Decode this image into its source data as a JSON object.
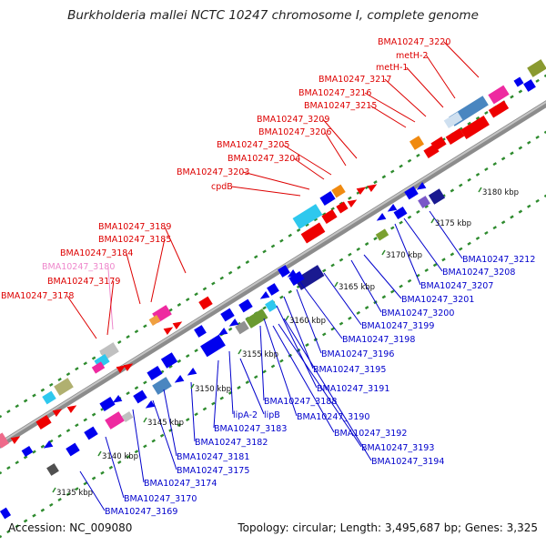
{
  "title": "Burkholderia mallei NCTC 10247 chromosome I, complete genome",
  "accession_label": "Accession: NC_009080",
  "topology_label": "Topology: circular; Length: 3,495,687 bp; Genes: 3,325",
  "colors": {
    "backbone": "#8c8c8c",
    "tick_dots": "#2e8b2e",
    "label_red": "#dd0000",
    "label_pink": "#ee88cc",
    "label_blue": "#0000cc"
  },
  "scale_labels": [
    "3135 kbp",
    "3140 kbp",
    "3145 kbp",
    "3150 kbp",
    "3155 kbp",
    "3160 kbp",
    "3165 kbp",
    "3170 kbp",
    "3175 kbp",
    "3180 kbp"
  ],
  "upper_labels": [
    {
      "text": "BMA10247_3220",
      "color": "red"
    },
    {
      "text": "metH-2",
      "color": "red"
    },
    {
      "text": "metH-1",
      "color": "red"
    },
    {
      "text": "BMA10247_3217",
      "color": "red"
    },
    {
      "text": "BMA10247_3216",
      "color": "red"
    },
    {
      "text": "BMA10247_3215",
      "color": "red"
    },
    {
      "text": "BMA10247_3209",
      "color": "red"
    },
    {
      "text": "BMA10247_3206",
      "color": "red"
    },
    {
      "text": "BMA10247_3205",
      "color": "red"
    },
    {
      "text": "BMA10247_3204",
      "color": "red"
    },
    {
      "text": "BMA10247_3203",
      "color": "red"
    },
    {
      "text": "cpdB",
      "color": "red"
    },
    {
      "text": "BMA10247_3189",
      "color": "red"
    },
    {
      "text": "BMA10247_3185",
      "color": "red"
    },
    {
      "text": "BMA10247_3184",
      "color": "red"
    },
    {
      "text": "BMA10247_3180",
      "color": "pink"
    },
    {
      "text": "BMA10247_3179",
      "color": "red"
    },
    {
      "text": "BMA10247_3178",
      "color": "red"
    }
  ],
  "lower_labels": [
    {
      "text": "BMA10247_3212"
    },
    {
      "text": "BMA10247_3208"
    },
    {
      "text": "BMA10247_3207"
    },
    {
      "text": "BMA10247_3201"
    },
    {
      "text": "BMA10247_3200"
    },
    {
      "text": "BMA10247_3199"
    },
    {
      "text": "BMA10247_3198"
    },
    {
      "text": "BMA10247_3196"
    },
    {
      "text": "BMA10247_3195"
    },
    {
      "text": "BMA10247_3191"
    },
    {
      "text": "BMA10247_3188"
    },
    {
      "text": "lipA-2"
    },
    {
      "text": "lipB"
    },
    {
      "text": "BMA10247_3190"
    },
    {
      "text": "BMA10247_3183"
    },
    {
      "text": "BMA10247_3182"
    },
    {
      "text": "BMA10247_3192"
    },
    {
      "text": "BMA10247_3181"
    },
    {
      "text": "BMA10247_3193"
    },
    {
      "text": "BMA10247_3194"
    },
    {
      "text": "BMA10247_3175"
    },
    {
      "text": "BMA10247_3174"
    },
    {
      "text": "BMA10247_3170"
    },
    {
      "text": "BMA10247_3169"
    }
  ]
}
